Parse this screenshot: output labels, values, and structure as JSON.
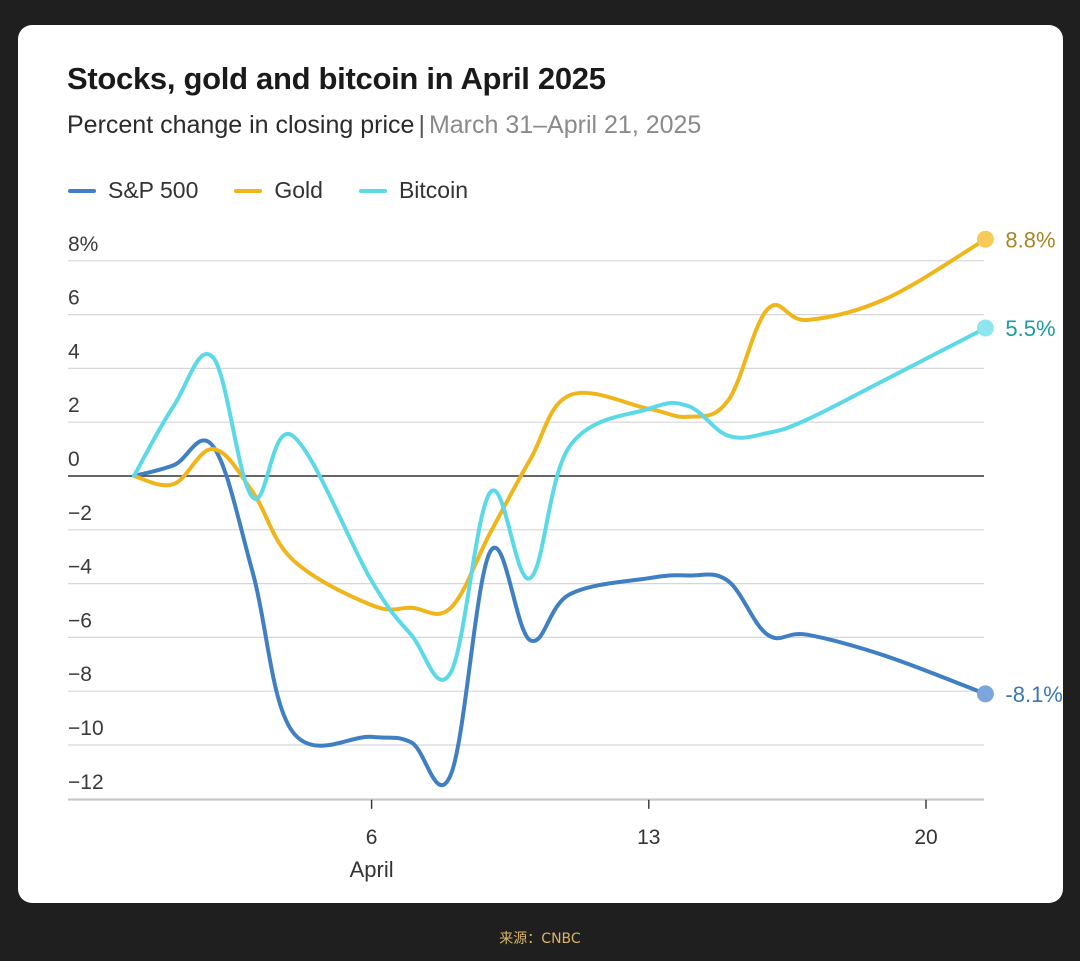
{
  "chart_data": {
    "type": "line",
    "title": "Stocks, gold and bitcoin in April 2025",
    "subtitle": "Percent change in closing price",
    "subtitle_separator": "|",
    "date_range": "March 31–April 21, 2025",
    "xlabel": "April",
    "ylabel": "",
    "x_ticks": [
      {
        "value": 6,
        "label": "6"
      },
      {
        "value": 13,
        "label": "13"
      },
      {
        "value": 20,
        "label": "20"
      }
    ],
    "y_ticks": [
      {
        "value": 8,
        "label": "8%"
      },
      {
        "value": 6,
        "label": "6"
      },
      {
        "value": 4,
        "label": "4"
      },
      {
        "value": 2,
        "label": "2"
      },
      {
        "value": 0,
        "label": "0"
      },
      {
        "value": -2,
        "label": "−2"
      },
      {
        "value": -4,
        "label": "−4"
      },
      {
        "value": -6,
        "label": "−6"
      },
      {
        "value": -8,
        "label": "−8"
      },
      {
        "value": -10,
        "label": "−10"
      },
      {
        "value": -12,
        "label": "−12"
      }
    ],
    "xlim": [
      -0.85,
      21.55
    ],
    "ylim": [
      -12,
      8
    ],
    "legend_position": "top-left",
    "series": [
      {
        "name": "S&P 500",
        "color": "#3f7fc2",
        "dot_color": "#7aa6dc",
        "end_label": "-8.1%",
        "label_color": "#3a77b8",
        "points": [
          [
            0,
            0
          ],
          [
            1,
            0.4
          ],
          [
            2,
            1.1
          ],
          [
            3,
            -3.6
          ],
          [
            4,
            -9.5
          ],
          [
            6,
            -9.7
          ],
          [
            7,
            -9.9
          ],
          [
            8,
            -11.1
          ],
          [
            9,
            -2.8
          ],
          [
            10,
            -6.1
          ],
          [
            11,
            -4.4
          ],
          [
            13,
            -3.8
          ],
          [
            14,
            -3.7
          ],
          [
            15,
            -3.9
          ],
          [
            16,
            -5.9
          ],
          [
            17,
            -5.9
          ],
          [
            19,
            -6.7
          ],
          [
            21.5,
            -8.1
          ]
        ]
      },
      {
        "name": "Gold",
        "color": "#f1b51c",
        "dot_color": "#f8ca58",
        "end_label": "8.8%",
        "label_color": "#a98526",
        "points": [
          [
            0,
            0
          ],
          [
            1,
            -0.3
          ],
          [
            2,
            1.0
          ],
          [
            3,
            -0.6
          ],
          [
            4,
            -3.1
          ],
          [
            6,
            -4.8
          ],
          [
            7,
            -4.9
          ],
          [
            8,
            -4.9
          ],
          [
            9,
            -2.1
          ],
          [
            10,
            0.6
          ],
          [
            11,
            3.0
          ],
          [
            13,
            2.5
          ],
          [
            14,
            2.2
          ],
          [
            15,
            2.8
          ],
          [
            16,
            6.2
          ],
          [
            17,
            5.8
          ],
          [
            19,
            6.6
          ],
          [
            21.5,
            8.8
          ]
        ]
      },
      {
        "name": "Bitcoin",
        "color": "#5cd9e6",
        "dot_color": "#8de6ef",
        "end_label": "5.5%",
        "label_color": "#1f9aa3",
        "points": [
          [
            0,
            0
          ],
          [
            1,
            2.6
          ],
          [
            2,
            4.4
          ],
          [
            3,
            -0.8
          ],
          [
            4,
            1.5
          ],
          [
            6,
            -3.9
          ],
          [
            7,
            -5.9
          ],
          [
            8,
            -7.3
          ],
          [
            9,
            -0.6
          ],
          [
            10,
            -3.8
          ],
          [
            11,
            1.1
          ],
          [
            13,
            2.5
          ],
          [
            14,
            2.6
          ],
          [
            15,
            1.5
          ],
          [
            16,
            1.6
          ],
          [
            17,
            2.1
          ],
          [
            19,
            3.6
          ],
          [
            21.5,
            5.5
          ]
        ]
      }
    ]
  },
  "source_text": "来源：CNBC"
}
